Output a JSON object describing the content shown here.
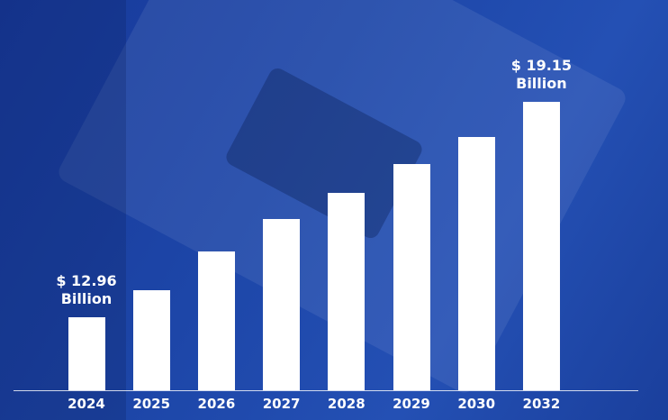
{
  "chart_data": {
    "type": "bar",
    "categories": [
      "2024",
      "2025",
      "2026",
      "2027",
      "2028",
      "2029",
      "2030",
      "2032"
    ],
    "values": [
      12.96,
      13.74,
      14.85,
      15.78,
      16.53,
      17.36,
      18.14,
      19.15
    ],
    "value_labels": [
      "$ 12.96\nBillion",
      null,
      null,
      null,
      null,
      null,
      null,
      "$ 19.15\nBillion"
    ],
    "color": "#ffffff",
    "ylim": [
      10.86,
      21.04
    ]
  }
}
